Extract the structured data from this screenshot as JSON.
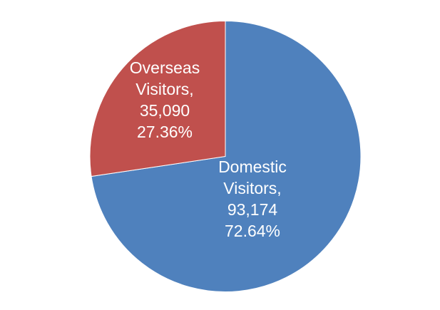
{
  "chart_data": {
    "type": "pie",
    "categories": [
      "Domestic Visitors",
      "Overseas Visitors"
    ],
    "values": [
      93174,
      35090
    ],
    "percentages": [
      "72.64%",
      "27.36%"
    ],
    "value_labels": [
      "93,174",
      "35,090"
    ],
    "label_lines": [
      [
        "Domestic",
        "Visitors,",
        "93,174",
        "72.64%"
      ],
      [
        "Overseas",
        "Visitors,",
        "35,090",
        "27.36%"
      ]
    ],
    "colors": [
      "#4f81bd",
      "#c0504d"
    ],
    "start_angle": "12 o'clock, clockwise",
    "legend": "none"
  }
}
